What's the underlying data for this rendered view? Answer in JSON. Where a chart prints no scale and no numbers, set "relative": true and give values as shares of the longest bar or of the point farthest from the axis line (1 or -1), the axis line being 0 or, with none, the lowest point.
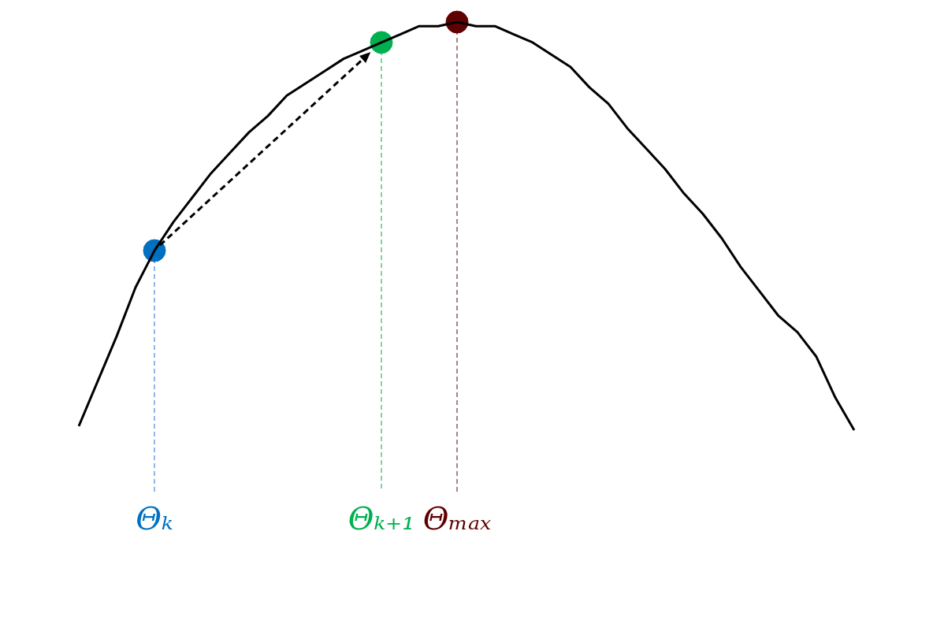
{
  "chart_data": {
    "type": "line",
    "relative": true,
    "grid": false,
    "legend": false,
    "tick_labels": "x",
    "categories": [
      null,
      null,
      null,
      null,
      "Θₖ",
      null,
      null,
      null,
      null,
      null,
      null,
      null,
      null,
      null,
      null,
      null,
      "Θₖ₊₁",
      null,
      null,
      null,
      "Θₘₐₓ",
      null,
      null,
      null,
      null,
      null,
      null,
      null,
      null,
      null,
      null,
      null,
      null,
      null,
      null,
      null,
      null,
      null,
      null,
      null,
      null,
      null
    ],
    "series": [
      {
        "type": "line",
        "color": "#000000",
        "marker": "none",
        "values": [
          0.01,
          0.12,
          0.23,
          0.35,
          0.44,
          0.51,
          0.57,
          0.63,
          0.68,
          0.73,
          0.77,
          0.82,
          0.85,
          0.88,
          0.91,
          0.93,
          0.95,
          0.97,
          0.99,
          0.99,
          1,
          0.99,
          0.99,
          0.97,
          0.95,
          0.92,
          0.89,
          0.84,
          0.8,
          0.74,
          0.69,
          0.64,
          0.58,
          0.53,
          0.47,
          0.4,
          0.34,
          0.28,
          0.24,
          0.18,
          0.08,
          0
        ]
      },
      {
        "type": "scatter",
        "color": "#0070c0",
        "marker": "circle",
        "x": [
          "Θₖ"
        ],
        "values": [
          0.44
        ]
      },
      {
        "type": "scatter",
        "color": "#00b050",
        "marker": "circle",
        "x": [
          "Θₖ₊₁"
        ],
        "values": [
          0.95
        ]
      },
      {
        "type": "scatter",
        "color": "#600000",
        "marker": "circle",
        "x": [
          "Θₘₐₓ"
        ],
        "values": [
          1
        ]
      }
    ],
    "ref_lines": [
      {
        "axis": "x",
        "value": "Θₖ",
        "color": "#5b8fe0",
        "line_style": "dashed"
      },
      {
        "axis": "x",
        "value": "Θₖ₊₁",
        "color": "#40b870",
        "line_style": "dashed"
      },
      {
        "axis": "x",
        "value": "Θₘₐₓ",
        "color": "#804040",
        "line_style": "dashed"
      }
    ]
  }
}
